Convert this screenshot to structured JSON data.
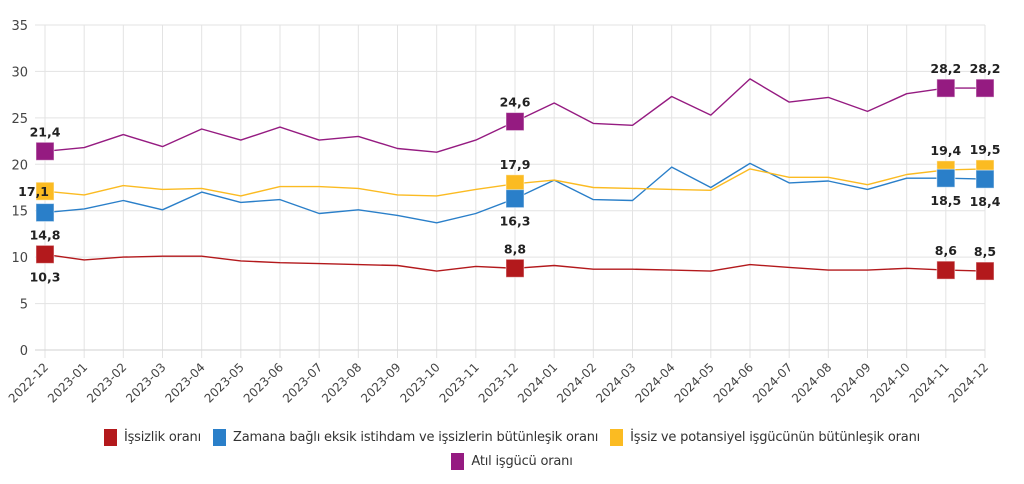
{
  "chart_data": {
    "type": "line",
    "title": "",
    "xlabel": "",
    "ylabel": "",
    "ylim": [
      0,
      35
    ],
    "yticks": [
      0,
      5,
      10,
      15,
      20,
      25,
      30,
      35
    ],
    "ytick_labels": [
      "0",
      "5",
      "10",
      "15",
      "20",
      "25",
      "30",
      "35"
    ],
    "grid": true,
    "legend_position": "bottom",
    "categories": [
      "2022-12",
      "2023-01",
      "2023-02",
      "2023-03",
      "2023-04",
      "2023-05",
      "2023-06",
      "2023-07",
      "2023-08",
      "2023-09",
      "2023-10",
      "2023-11",
      "2023-12",
      "2024-01",
      "2024-02",
      "2024-03",
      "2024-04",
      "2024-05",
      "2024-06",
      "2024-07",
      "2024-08",
      "2024-09",
      "2024-10",
      "2024-11",
      "2024-12"
    ],
    "series": [
      {
        "name": "İşsizlik oranı",
        "color": "#b3191c",
        "values": [
          10.3,
          9.7,
          10.0,
          10.1,
          10.1,
          9.6,
          9.4,
          9.3,
          9.2,
          9.1,
          8.5,
          9.0,
          8.8,
          9.1,
          8.7,
          8.7,
          8.6,
          8.5,
          9.2,
          8.9,
          8.6,
          8.6,
          8.8,
          8.6,
          8.5
        ],
        "labeled_points": [
          {
            "index": 0,
            "label": "10,3",
            "position": "below"
          },
          {
            "index": 12,
            "label": "8,8",
            "position": "above"
          },
          {
            "index": 23,
            "label": "8,6",
            "position": "above"
          },
          {
            "index": 24,
            "label": "8,5",
            "position": "above"
          }
        ]
      },
      {
        "name": "Zamana bağlı eksik istihdam ve işsizlerin bütünleşik oranı",
        "color": "#2a7fc9",
        "values": [
          14.8,
          15.2,
          16.1,
          15.1,
          17.0,
          15.9,
          16.2,
          14.7,
          15.1,
          14.5,
          13.7,
          14.7,
          16.3,
          18.3,
          16.2,
          16.1,
          19.7,
          17.5,
          20.1,
          18.0,
          18.2,
          17.3,
          18.5,
          18.5,
          18.4
        ],
        "labeled_points": [
          {
            "index": 0,
            "label": "14,8",
            "position": "below"
          },
          {
            "index": 12,
            "label": "16,3",
            "position": "below"
          },
          {
            "index": 23,
            "label": "18,5",
            "position": "below"
          },
          {
            "index": 24,
            "label": "18,4",
            "position": "below"
          }
        ]
      },
      {
        "name": "İşsiz ve potansiyel işgücünün bütünleşik oranı",
        "color": "#fbbb22",
        "values": [
          17.1,
          16.7,
          17.7,
          17.3,
          17.4,
          16.6,
          17.6,
          17.6,
          17.4,
          16.7,
          16.6,
          17.3,
          17.9,
          18.3,
          17.5,
          17.4,
          17.3,
          17.2,
          19.5,
          18.6,
          18.6,
          17.8,
          18.9,
          19.4,
          19.5
        ],
        "labeled_points": [
          {
            "index": 0,
            "label": "17,1",
            "position": "left"
          },
          {
            "index": 12,
            "label": "17,9",
            "position": "above"
          },
          {
            "index": 23,
            "label": "19,4",
            "position": "above"
          },
          {
            "index": 24,
            "label": "19,5",
            "position": "above"
          }
        ]
      },
      {
        "name": "Atıl işgücü oranı",
        "color": "#951b81",
        "values": [
          21.4,
          21.8,
          23.2,
          21.9,
          23.8,
          22.6,
          24.0,
          22.6,
          23.0,
          21.7,
          21.3,
          22.6,
          24.6,
          26.6,
          24.4,
          24.2,
          27.3,
          25.3,
          29.2,
          26.7,
          27.2,
          25.7,
          27.6,
          28.2,
          28.2
        ],
        "labeled_points": [
          {
            "index": 0,
            "label": "21,4",
            "position": "above"
          },
          {
            "index": 12,
            "label": "24,6",
            "position": "above"
          },
          {
            "index": 23,
            "label": "28,2",
            "position": "above"
          },
          {
            "index": 24,
            "label": "28,2",
            "position": "above"
          }
        ]
      }
    ]
  },
  "legend": {
    "rows": [
      [
        0,
        1,
        2
      ],
      [
        3
      ]
    ]
  }
}
